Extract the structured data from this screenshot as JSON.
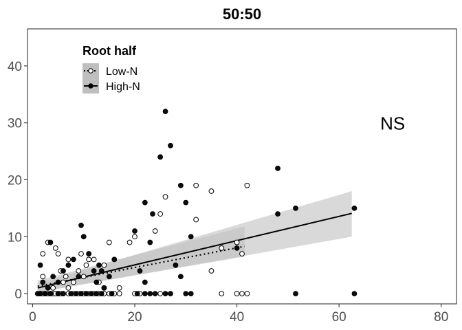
{
  "chart_data": {
    "type": "scatter",
    "title": "50:50",
    "xlabel": "",
    "ylabel": "",
    "xlim": [
      -1,
      83
    ],
    "ylim": [
      -1.8,
      46.5
    ],
    "x_ticks": [
      0,
      20,
      40,
      60,
      80
    ],
    "y_ticks": [
      0,
      10,
      20,
      30,
      40
    ],
    "grid": false,
    "legend": {
      "title": "Root half",
      "placement": "top-left",
      "entries": [
        "Low-N",
        "High-N"
      ]
    },
    "annotation": "NS",
    "colors": {
      "low_n_fill": "#ffffff",
      "high_n_fill": "#000000",
      "point_stroke": "#000000",
      "ribbon": "#bfbfbf",
      "line": "#000000"
    },
    "series": [
      {
        "name": "Low-N",
        "marker": "open-circle",
        "fit": {
          "type": "linear",
          "line_style": "dotted",
          "x_range": [
            1,
            41.5
          ],
          "y_start": 1.3,
          "y_end": 8.3,
          "ci_start": [
            0.3,
            2.3
          ],
          "ci_end": [
            6.5,
            11.8
          ]
        },
        "points": [
          [
            1,
            0
          ],
          [
            1.5,
            0
          ],
          [
            2,
            0
          ],
          [
            2.5,
            0
          ],
          [
            3,
            0
          ],
          [
            3.5,
            0
          ],
          [
            4,
            0
          ],
          [
            4.5,
            0
          ],
          [
            5,
            0
          ],
          [
            5.5,
            0
          ],
          [
            6,
            0
          ],
          [
            7,
            0
          ],
          [
            8,
            0
          ],
          [
            9,
            0
          ],
          [
            10,
            0
          ],
          [
            11,
            0
          ],
          [
            12,
            0
          ],
          [
            13,
            0
          ],
          [
            14,
            0
          ],
          [
            15,
            0
          ],
          [
            16,
            0
          ],
          [
            17,
            0
          ],
          [
            20,
            0
          ],
          [
            21,
            0
          ],
          [
            25,
            0
          ],
          [
            37,
            0
          ],
          [
            40,
            0
          ],
          [
            41,
            0
          ],
          [
            42,
            0
          ],
          [
            2,
            7
          ],
          [
            3,
            9
          ],
          [
            4,
            1
          ],
          [
            4.5,
            8
          ],
          [
            5,
            7
          ],
          [
            5.5,
            4
          ],
          [
            6,
            2
          ],
          [
            6.5,
            3
          ],
          [
            7,
            1
          ],
          [
            8,
            2
          ],
          [
            9,
            4
          ],
          [
            9.5,
            7
          ],
          [
            10,
            3
          ],
          [
            10.5,
            5
          ],
          [
            11,
            7
          ],
          [
            12,
            6
          ],
          [
            13,
            2
          ],
          [
            14,
            5
          ],
          [
            15,
            9
          ],
          [
            16,
            6
          ],
          [
            19,
            9
          ],
          [
            20,
            10
          ],
          [
            24,
            11
          ],
          [
            25,
            14
          ],
          [
            26,
            17
          ],
          [
            32,
            19
          ],
          [
            32,
            13
          ],
          [
            35,
            4
          ],
          [
            35,
            18
          ],
          [
            37,
            8
          ],
          [
            40,
            9
          ],
          [
            41,
            7
          ],
          [
            42,
            19
          ],
          [
            2,
            3
          ],
          [
            7,
            6
          ],
          [
            11,
            6
          ],
          [
            14,
            1
          ],
          [
            17,
            1
          ]
        ]
      },
      {
        "name": "High-N",
        "marker": "filled-circle",
        "fit": {
          "type": "linear",
          "line_style": "solid",
          "x_range": [
            1,
            62.5
          ],
          "y_start": 1.0,
          "y_end": 14.1,
          "ci_start": [
            0.2,
            1.8
          ],
          "ci_end": [
            10.0,
            18.0
          ]
        },
        "points": [
          [
            1,
            0
          ],
          [
            1.5,
            0
          ],
          [
            2.5,
            0
          ],
          [
            3.5,
            0
          ],
          [
            5,
            0
          ],
          [
            6,
            0
          ],
          [
            7.5,
            0
          ],
          [
            8.5,
            0
          ],
          [
            9.5,
            0
          ],
          [
            10.5,
            0
          ],
          [
            11.5,
            0
          ],
          [
            12.5,
            0
          ],
          [
            13.5,
            0
          ],
          [
            15.5,
            0
          ],
          [
            20.5,
            0
          ],
          [
            22,
            0
          ],
          [
            23,
            0
          ],
          [
            24,
            0
          ],
          [
            26,
            0
          ],
          [
            27,
            0
          ],
          [
            30,
            0
          ],
          [
            31,
            0
          ],
          [
            51.5,
            0
          ],
          [
            63,
            0
          ],
          [
            1.5,
            5
          ],
          [
            2,
            2
          ],
          [
            3,
            1
          ],
          [
            3.5,
            9
          ],
          [
            4,
            3
          ],
          [
            5,
            2
          ],
          [
            6,
            4
          ],
          [
            7,
            5
          ],
          [
            8,
            6
          ],
          [
            9,
            3
          ],
          [
            9.5,
            12
          ],
          [
            10,
            10
          ],
          [
            11,
            7
          ],
          [
            12,
            4
          ],
          [
            12.5,
            2
          ],
          [
            13,
            5
          ],
          [
            14,
            1
          ],
          [
            15,
            3
          ],
          [
            16,
            6
          ],
          [
            20,
            11
          ],
          [
            21,
            4
          ],
          [
            22,
            16
          ],
          [
            23,
            9
          ],
          [
            23.5,
            14
          ],
          [
            25,
            24
          ],
          [
            26,
            32
          ],
          [
            27,
            26
          ],
          [
            28,
            5
          ],
          [
            29,
            19
          ],
          [
            30,
            16
          ],
          [
            31,
            10
          ],
          [
            40,
            8
          ],
          [
            48,
            22
          ],
          [
            48,
            14
          ],
          [
            51.5,
            15
          ],
          [
            63,
            15
          ],
          [
            2.5,
            0
          ],
          [
            13.5,
            4
          ],
          [
            22,
            2
          ],
          [
            29,
            3
          ]
        ]
      }
    ]
  }
}
